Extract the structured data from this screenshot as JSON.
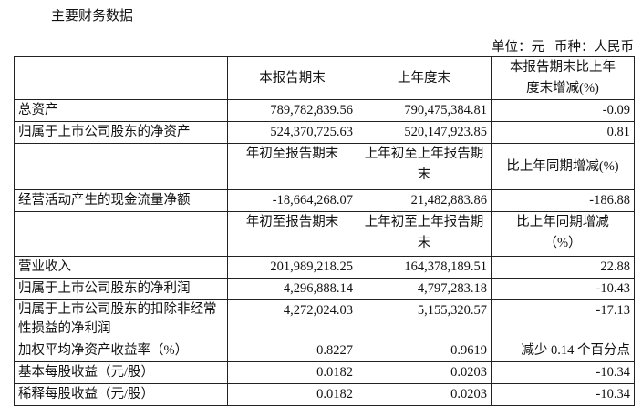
{
  "title": "主要财务数据",
  "unit": "单位：元   币种：人民币",
  "header1": {
    "c1": "本报告期末",
    "c2": "上年度末",
    "c3": "本报告期末比上年度末增减(%)"
  },
  "balance_rows": [
    {
      "label": "总资产",
      "v1": "789,782,839.56",
      "v2": "790,475,384.81",
      "v3": "-0.09"
    },
    {
      "label": "归属于上市公司股东的净资产",
      "v1": "524,370,725.63",
      "v2": "520,147,923.85",
      "v3": "0.81"
    }
  ],
  "header2": {
    "c1": "年初至报告期末",
    "c2": "上年初至上年报告期末",
    "c3": "比上年同期增减(%)"
  },
  "cash_row": {
    "label": "经营活动产生的现金流量净额",
    "v1": "-18,664,268.07",
    "v2": "21,482,883.86",
    "v3": "-186.88"
  },
  "header3": {
    "c1": "年初至报告期末",
    "c2": "上年初至上年报告期末",
    "c3": "比上年同期增减（%）"
  },
  "income_rows": [
    {
      "label": "营业收入",
      "v1": "201,989,218.25",
      "v2": "164,378,189.51",
      "v3": "22.88"
    },
    {
      "label": "归属于上市公司股东的净利润",
      "v1": "4,296,888.14",
      "v2": "4,797,283.18",
      "v3": "-10.43"
    },
    {
      "label": "归属于上市公司股东的扣除非经常性损益的净利润",
      "v1": "4,272,024.03",
      "v2": "5,155,320.57",
      "v3": "-17.13"
    },
    {
      "label": "加权平均净资产收益率（%）",
      "v1": "0.8227",
      "v2": "0.9619",
      "v3": "减少 0.14 个百分点"
    },
    {
      "label": "基本每股收益（元/股）",
      "v1": "0.0182",
      "v2": "0.0203",
      "v3": "-10.34"
    },
    {
      "label": "稀释每股收益（元/股）",
      "v1": "0.0182",
      "v2": "0.0203",
      "v3": "-10.34"
    }
  ]
}
